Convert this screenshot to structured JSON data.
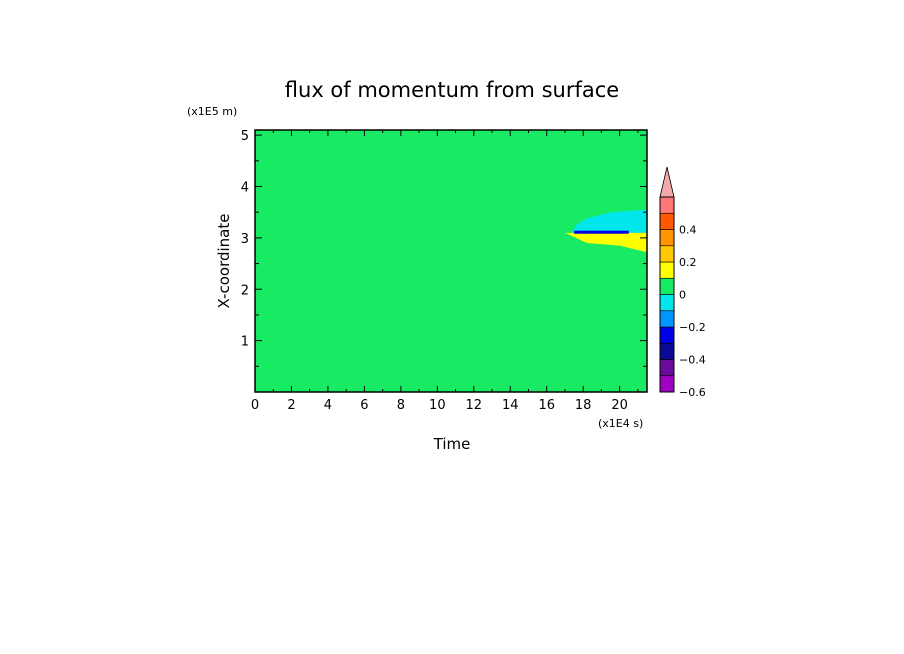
{
  "chart_data": {
    "type": "heatmap",
    "title": "flux of momentum from surface",
    "xlabel": "Time",
    "ylabel": "X-coordinate",
    "x_unit": "(x1E4 s)",
    "y_unit": "(x1E5 m)",
    "xlim": [
      0,
      21.5
    ],
    "ylim": [
      0,
      5.1
    ],
    "x_ticks": [
      0,
      2,
      4,
      6,
      8,
      10,
      12,
      14,
      16,
      18,
      20
    ],
    "x_tick_labels": [
      "0",
      "2",
      "4",
      "6",
      "8",
      "10",
      "12",
      "14",
      "16",
      "18",
      "20"
    ],
    "y_ticks": [
      1,
      2,
      3,
      4,
      5
    ],
    "y_tick_labels": [
      "1",
      "2",
      "3",
      "4",
      "5"
    ],
    "colorbar": {
      "levels": [
        -0.6,
        -0.5,
        -0.4,
        -0.3,
        -0.2,
        -0.1,
        0,
        0.1,
        0.2,
        0.3,
        0.4,
        0.5
      ],
      "colors": [
        "#a000c0",
        "#6a0a98",
        "#0a0a96",
        "#0000e6",
        "#0096ff",
        "#00e6ea",
        "#19ea64",
        "#ffff00",
        "#ffc800",
        "#ff9600",
        "#ff5a00",
        "#ff7878"
      ],
      "tick_values": [
        -0.6,
        -0.4,
        -0.2,
        0,
        0.2,
        0.4
      ],
      "tick_labels": [
        "−0.6",
        "−0.4",
        "−0.2",
        "0",
        "0.2",
        "0.4"
      ],
      "extend": "max",
      "extend_color": "#f5aaaa"
    },
    "field_description": {
      "background_band_values": [
        0.0,
        0.05
      ],
      "shear_line_x": 3.1,
      "negative_region": {
        "t_range": [
          17,
          21.5
        ],
        "x_range": [
          3.1,
          3.4
        ],
        "value": -0.1
      },
      "positive_region": {
        "t_range": [
          17,
          21.5
        ],
        "x_range": [
          2.0,
          3.1
        ],
        "value": 0.05
      },
      "strong_positive_strip": {
        "t_range": [
          17,
          21.5
        ],
        "x_range": [
          2.9,
          3.1
        ],
        "value": 0.15
      },
      "negative_strip": {
        "t_range": [
          17.5,
          20.5
        ],
        "x_range": [
          3.1,
          3.12
        ],
        "value": -0.25
      }
    }
  }
}
